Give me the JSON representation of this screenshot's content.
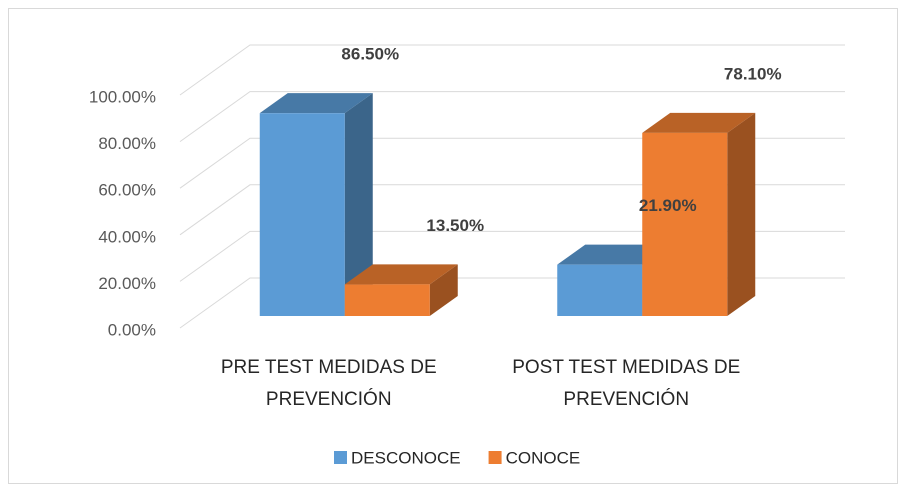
{
  "chart_data": {
    "type": "bar3d",
    "categories": [
      "PRE TEST MEDIDAS  DE PREVENCIÓN",
      "POST  TEST MEDIDAS  DE PREVENCIÓN"
    ],
    "series": [
      {
        "name": "DESCONOCE",
        "color": "#5b9bd5",
        "values": [
          86.5,
          21.9
        ],
        "value_labels": [
          "86.50%",
          "21.90%"
        ]
      },
      {
        "name": "CONOCE",
        "color": "#ed7d31",
        "values": [
          13.5,
          78.1
        ],
        "value_labels": [
          "13.50%",
          "78.10%"
        ]
      }
    ],
    "ylim": [
      0,
      100
    ],
    "yticks": [
      {
        "value": 0,
        "label": "0.00%"
      },
      {
        "value": 20,
        "label": "20.00%"
      },
      {
        "value": 40,
        "label": "40.00%"
      },
      {
        "value": 60,
        "label": "60.00%"
      },
      {
        "value": 80,
        "label": "80.00%"
      },
      {
        "value": 100,
        "label": "100.00%"
      }
    ],
    "grid": true,
    "legend": "bottom"
  }
}
